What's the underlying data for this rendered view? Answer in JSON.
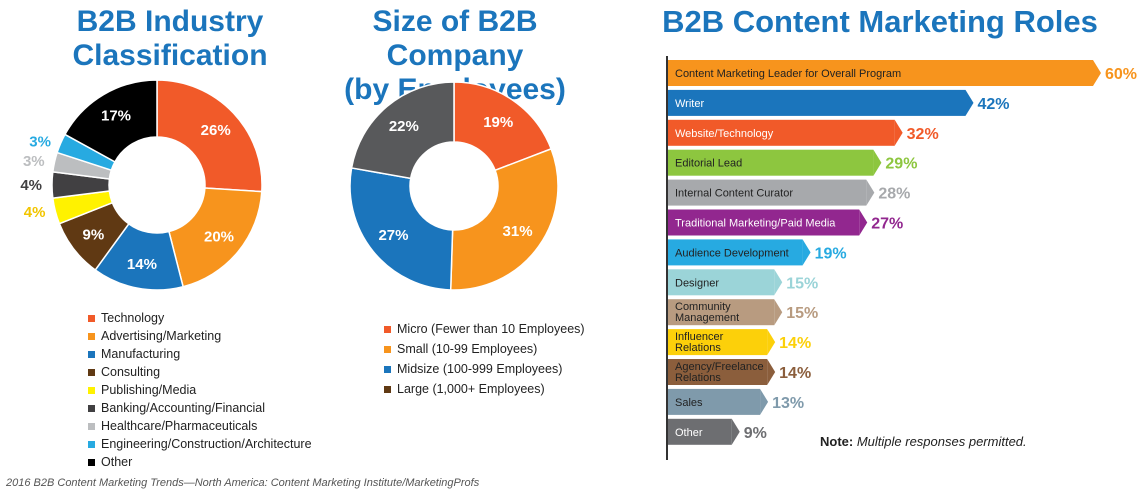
{
  "titles": {
    "industry_line1": "B2B Industry",
    "industry_line2": "Classification",
    "size_line1": "Size of B2B Company",
    "size_line2": "(by Employees)",
    "roles": "B2B Content Marketing Roles"
  },
  "note": {
    "label": "Note:",
    "text": "Multiple responses permitted."
  },
  "source": "2016 B2B Content Marketing Trends—North America: Content Marketing Institute/MarketingProfs",
  "chart_data": [
    {
      "type": "pie",
      "title": "B2B Industry Classification",
      "categories": [
        "Technology",
        "Advertising/Marketing",
        "Manufacturing",
        "Consulting",
        "Publishing/Media",
        "Banking/Accounting/Financial",
        "Healthcare/Pharmaceuticals",
        "Engineering/Construction/Architecture",
        "Other"
      ],
      "values": [
        26,
        20,
        14,
        9,
        4,
        4,
        3,
        3,
        17
      ],
      "labels": [
        "26%",
        "20%",
        "14%",
        "9%",
        "4%",
        "4%",
        "3%",
        "3%",
        "17%"
      ],
      "colors": [
        "#f15a29",
        "#f7941d",
        "#1b75bc",
        "#603913",
        "#fff200",
        "#414042",
        "#bcbec0",
        "#27aae1",
        "#000000"
      ],
      "label_colors": [
        "#ffffff",
        "#ffffff",
        "#ffffff",
        "#ffffff",
        "#f2c500",
        "#414042",
        "#bcbec0",
        "#27aae1",
        "#ffffff"
      ],
      "legend": "bottom"
    },
    {
      "type": "pie",
      "title": "Size of B2B Company (by Employees)",
      "categories": [
        "Micro (Fewer than 10 Employees)",
        "Small (10-99 Employees)",
        "Midsize (100-999 Employees)",
        "Large (1,000+ Employees)"
      ],
      "values": [
        19,
        31,
        27,
        22
      ],
      "labels": [
        "19%",
        "31%",
        "27%",
        "22%"
      ],
      "colors": [
        "#f15a29",
        "#f7941d",
        "#1b75bc",
        "#58595b"
      ],
      "legend_colors": [
        "#f15a29",
        "#f7941d",
        "#1b75bc",
        "#603913"
      ],
      "legend": "bottom"
    },
    {
      "type": "bar",
      "orientation": "horizontal",
      "title": "B2B Content Marketing Roles",
      "categories": [
        "Content Marketing Leader for Overall Program",
        "Writer",
        "Website/Technology",
        "Editorial Lead",
        "Internal Content Curator",
        "Traditional Marketing/Paid Media",
        "Audience Development",
        "Designer",
        "Community Management",
        "Influencer Relations",
        "Agency/Freelance Relations",
        "Sales",
        "Other"
      ],
      "values": [
        60,
        42,
        32,
        29,
        28,
        27,
        19,
        15,
        15,
        14,
        14,
        13,
        9
      ],
      "labels": [
        "60%",
        "42%",
        "32%",
        "29%",
        "28%",
        "27%",
        "19%",
        "15%",
        "15%",
        "14%",
        "14%",
        "13%",
        "9%"
      ],
      "colors": [
        "#f7941d",
        "#1b75bc",
        "#f15a29",
        "#8dc63f",
        "#a7a9ac",
        "#92278f",
        "#27aae1",
        "#9bd4d8",
        "#b89b80",
        "#fcd00a",
        "#8b5e3c",
        "#7f9aab",
        "#6d6e71"
      ],
      "label_text_colors": [
        "#222222",
        "#ffffff",
        "#ffffff",
        "#222222",
        "#222222",
        "#ffffff",
        "#222222",
        "#222222",
        "#222222",
        "#222222",
        "#222222",
        "#222222",
        "#ffffff"
      ],
      "value_colors": [
        "#f7941d",
        "#1b75bc",
        "#f15a29",
        "#8dc63f",
        "#a7a9ac",
        "#92278f",
        "#27aae1",
        "#9bd4d8",
        "#b89b80",
        "#fcd00a",
        "#8b5e3c",
        "#7f9aab",
        "#6d6e71"
      ],
      "xlim": [
        0,
        60
      ]
    }
  ]
}
